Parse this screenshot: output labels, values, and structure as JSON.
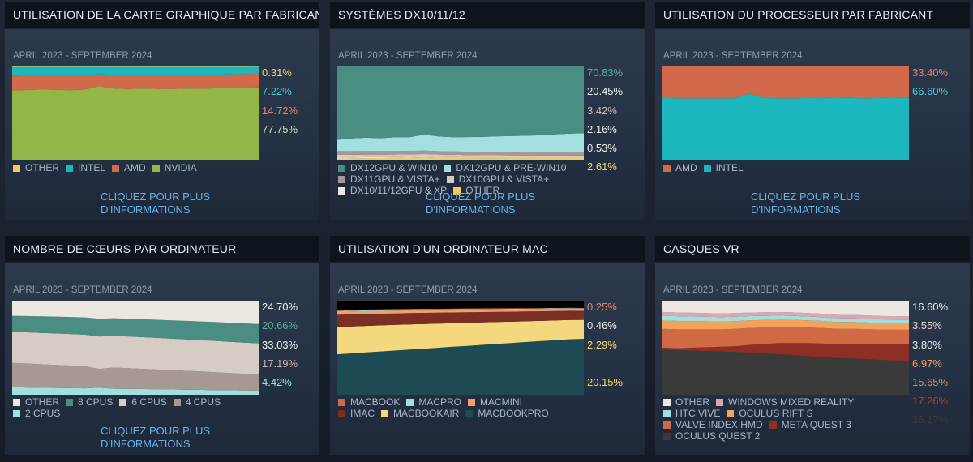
{
  "panels": [
    {
      "title": "UTILISATION DE LA CARTE GRAPHIQUE PAR FABRICANT",
      "date_range": "APRIL 2023 - SEPTEMBER 2024",
      "link_lines": [
        "CLIQUEZ POUR PLUS",
        "D'INFORMATIONS"
      ],
      "chart_data": {
        "type": "area",
        "stacking": "percent",
        "series": [
          {
            "name": "NVIDIA",
            "color": "#93b647",
            "label": "77.75%",
            "label_color": "#d4e6a8",
            "values": [
              74.5,
              75.0,
              75.5,
              75.2,
              74.8,
              75.4,
              79.2,
              76.5,
              76.0,
              76.5,
              76.2,
              76.0,
              76.5,
              76.3,
              76.8,
              77.0,
              77.3,
              77.75
            ]
          },
          {
            "name": "AMD",
            "color": "#d1694a",
            "label": "14.72%",
            "label_color": "#e58567",
            "values": [
              15.8,
              15.6,
              15.2,
              15.4,
              15.8,
              15.5,
              12.5,
              14.6,
              15.0,
              14.6,
              14.8,
              15.0,
              14.6,
              14.8,
              14.5,
              14.6,
              14.7,
              14.72
            ]
          },
          {
            "name": "INTEL",
            "color": "#1cb7be",
            "label": "7.22%",
            "label_color": "#3fd0d4",
            "values": [
              9.2,
              9.0,
              8.9,
              9.0,
              9.0,
              8.7,
              7.9,
              8.5,
              8.6,
              8.5,
              8.6,
              8.6,
              8.5,
              8.5,
              8.3,
              8.0,
              7.6,
              7.22
            ]
          },
          {
            "name": "OTHER",
            "color": "#f2cb5c",
            "label": "0.31%",
            "label_color": "#f6d86c",
            "values": [
              0.5,
              0.4,
              0.4,
              0.4,
              0.4,
              0.4,
              0.4,
              0.4,
              0.4,
              0.4,
              0.4,
              0.4,
              0.4,
              0.4,
              0.4,
              0.4,
              0.4,
              0.31
            ]
          }
        ]
      },
      "legend": [
        [
          "OTHER",
          "INTEL",
          "AMD",
          "NVIDIA"
        ]
      ]
    },
    {
      "title": "SYSTÈMES DX10/11/12",
      "date_range": "APRIL 2023 - SEPTEMBER 2024",
      "link_lines": [
        "CLIQUEZ POUR PLUS",
        "D'INFORMATIONS"
      ],
      "chart_data": {
        "type": "area",
        "stacking": "percent",
        "series": [
          {
            "name": "OTHER",
            "color": "#f2cb5c",
            "label": "2.61%",
            "label_color": "#f6d86c",
            "values": [
              2.0,
              2.2,
              2.5,
              2.6,
              2.8,
              3.0,
              3.5,
              3.0,
              2.8,
              2.6,
              2.5,
              2.5,
              2.6,
              2.5,
              2.6,
              2.6,
              2.6,
              2.61
            ]
          },
          {
            "name": "DX10/11/12GPU & XP",
            "color": "#ece8e1",
            "label": "0.53%",
            "label_color": "#f0f0f0",
            "values": [
              1.0,
              1.0,
              1.0,
              0.9,
              0.9,
              0.9,
              0.8,
              0.8,
              0.8,
              0.7,
              0.7,
              0.7,
              0.6,
              0.6,
              0.6,
              0.6,
              0.55,
              0.53
            ]
          },
          {
            "name": "DX10GPU & VISTA+",
            "color": "#d7ccc4",
            "label": "2.16%",
            "label_color": "#f0f0f0",
            "values": [
              3.0,
              2.9,
              2.8,
              2.8,
              2.7,
              2.7,
              2.6,
              2.6,
              2.5,
              2.5,
              2.4,
              2.4,
              2.3,
              2.3,
              2.2,
              2.2,
              2.2,
              2.16
            ]
          },
          {
            "name": "DX11GPU & VISTA+",
            "color": "#a89893",
            "label": "3.42%",
            "label_color": "#d7b8b0",
            "values": [
              4.0,
              3.9,
              3.9,
              3.8,
              3.8,
              3.7,
              3.7,
              3.6,
              3.6,
              3.6,
              3.5,
              3.5,
              3.5,
              3.5,
              3.4,
              3.4,
              3.4,
              3.42
            ]
          },
          {
            "name": "DX12GPU & PRE-WIN10",
            "color": "#a2e0e0",
            "label": "20.45%",
            "label_color": "#f0f0f0",
            "values": [
              12.0,
              13.5,
              14.0,
              13.5,
              14.5,
              14.5,
              17.0,
              15.5,
              15.0,
              15.5,
              16.0,
              16.5,
              17.0,
              17.5,
              18.0,
              19.0,
              19.8,
              20.45
            ]
          },
          {
            "name": "DX12GPU & WIN10",
            "color": "#4a8d83",
            "label": "70.83%",
            "label_color": "#5aaa9c",
            "values": [
              78.0,
              76.5,
              75.8,
              76.4,
              75.3,
              75.2,
              72.4,
              74.5,
              75.3,
              75.1,
              74.9,
              74.4,
              74.0,
              73.6,
              73.2,
              72.2,
              71.45,
              70.83
            ]
          }
        ]
      },
      "legend": [
        [
          "DX12GPU & WIN10",
          "DX12GPU & PRE-WIN10"
        ],
        [
          "DX11GPU & VISTA+",
          "DX10GPU & VISTA+"
        ],
        [
          "DX10/11/12GPU & XP",
          "OTHER"
        ]
      ]
    },
    {
      "title": "UTILISATION DU PROCESSEUR PAR FABRICANT",
      "date_range": "APRIL 2023 - SEPTEMBER 2024",
      "link_lines": [
        "CLIQUEZ POUR PLUS",
        "D'INFORMATIONS"
      ],
      "chart_data": {
        "type": "area",
        "stacking": "percent",
        "series": [
          {
            "name": "INTEL",
            "color": "#1cb7be",
            "label": "66.60%",
            "label_color": "#3fd0d4",
            "values": [
              66.5,
              66.2,
              66.0,
              66.2,
              66.0,
              66.3,
              71.0,
              66.5,
              66.2,
              66.0,
              66.5,
              66.3,
              66.8,
              66.5,
              66.2,
              66.5,
              66.4,
              66.6
            ]
          },
          {
            "name": "AMD",
            "color": "#d1694a",
            "label": "33.40%",
            "label_color": "#e58567",
            "values": [
              33.5,
              33.8,
              34.0,
              33.8,
              34.0,
              33.7,
              29.0,
              33.5,
              33.8,
              34.0,
              33.5,
              33.7,
              33.2,
              33.5,
              33.8,
              33.5,
              33.6,
              33.4
            ]
          }
        ]
      },
      "legend": [
        [
          "AMD",
          "INTEL"
        ]
      ]
    },
    {
      "title": "NOMBRE DE CŒURS PAR ORDINATEUR",
      "date_range": "APRIL 2023 - SEPTEMBER 2024",
      "link_lines": [
        "CLIQUEZ POUR PLUS",
        "D'INFORMATIONS"
      ],
      "chart_data": {
        "type": "area",
        "stacking": "percent",
        "series": [
          {
            "name": "2 CPUS",
            "color": "#a2e0e0",
            "label": "4.42%",
            "label_color": "#9fe8e8",
            "values": [
              8.0,
              7.7,
              7.4,
              7.2,
              7.0,
              6.8,
              7.5,
              6.4,
              6.2,
              6.0,
              5.8,
              5.6,
              5.4,
              5.2,
              5.0,
              4.8,
              4.6,
              4.42
            ]
          },
          {
            "name": "4 CPUS",
            "color": "#a89893",
            "label": "17.19%",
            "label_color": "#c9b1aa",
            "values": [
              26.0,
              25.5,
              25.0,
              24.5,
              24.0,
              23.5,
              20.0,
              22.5,
              22.0,
              21.5,
              21.0,
              20.5,
              20.0,
              19.5,
              19.0,
              18.3,
              17.7,
              17.19
            ]
          },
          {
            "name": "6 CPUS",
            "color": "#d7ccc4",
            "label": "33.03%",
            "label_color": "#f0f0f0",
            "values": [
              33.0,
              33.2,
              33.4,
              33.5,
              33.6,
              33.6,
              34.5,
              33.8,
              33.8,
              33.7,
              33.6,
              33.5,
              33.4,
              33.3,
              33.2,
              33.1,
              33.05,
              33.03
            ]
          },
          {
            "name": "8 CPUS",
            "color": "#4a8d83",
            "label": "20.66%",
            "label_color": "#5aaa9c",
            "values": [
              17.0,
              17.3,
              17.6,
              17.9,
              18.1,
              18.3,
              18.8,
              18.7,
              18.9,
              19.1,
              19.3,
              19.5,
              19.7,
              19.9,
              20.1,
              20.3,
              20.5,
              20.66
            ]
          },
          {
            "name": "OTHER",
            "color": "#ece8e1",
            "label": "24.70%",
            "label_color": "#f0f0f0",
            "values": [
              16.0,
              16.3,
              16.6,
              16.9,
              17.3,
              17.8,
              19.2,
              18.6,
              19.1,
              19.7,
              20.3,
              20.9,
              21.5,
              22.1,
              22.7,
              23.5,
              24.15,
              24.7
            ]
          }
        ]
      },
      "legend": [
        [
          "OTHER",
          "8 CPUS",
          "6 CPUS",
          "4 CPUS"
        ],
        [
          "2 CPUS"
        ]
      ]
    },
    {
      "title": "UTILISATION D'UN ORDINATEUR MAC",
      "date_range": "APRIL 2023 - SEPTEMBER 2024",
      "link_lines": [],
      "chart_data": {
        "type": "area",
        "stacking": "percent",
        "series": [
          {
            "name": "MACBOOKPRO",
            "color": "#1c4a55",
            "label": "",
            "label_color": "#1c4a55",
            "values": [
              43.0,
              44.0,
              45.0,
              46.0,
              47.0,
              48.0,
              49.0,
              50.0,
              51.0,
              52.0,
              53.0,
              54.0,
              55.0,
              56.0,
              57.0,
              58.0,
              59.0,
              59.5
            ]
          },
          {
            "name": "MACBOOKAIR",
            "color": "#f3d87d",
            "label": "20.15%",
            "label_color": "#f6d86c",
            "values": [
              29.0,
              28.6,
              28.2,
              27.8,
              27.3,
              26.8,
              26.3,
              25.7,
              25.1,
              24.5,
              23.9,
              23.3,
              22.7,
              22.1,
              21.5,
              21.0,
              20.5,
              20.15
            ]
          },
          {
            "name": "IMAC",
            "color": "#7a2e24",
            "label": "",
            "label_color": "#7a2e24",
            "values": [
              13.0,
              12.8,
              12.6,
              12.4,
              12.2,
              12.0,
              11.8,
              11.6,
              11.4,
              11.2,
              11.0,
              10.8,
              10.6,
              10.4,
              10.2,
              10.0,
              9.8,
              9.6
            ]
          },
          {
            "name": "MACMINI",
            "color": "#f0a068",
            "label": "2.29%",
            "label_color": "#f6d86c",
            "values": [
              3.2,
              3.1,
              3.1,
              3.0,
              3.0,
              2.9,
              2.9,
              2.8,
              2.8,
              2.7,
              2.7,
              2.6,
              2.6,
              2.5,
              2.5,
              2.4,
              2.35,
              2.29
            ]
          },
          {
            "name": "MACPRO",
            "color": "#a2e0e0",
            "label": "0.46%",
            "label_color": "#f0f0f0",
            "values": [
              0.8,
              0.8,
              0.8,
              0.7,
              0.7,
              0.7,
              0.7,
              0.6,
              0.6,
              0.6,
              0.6,
              0.6,
              0.5,
              0.5,
              0.5,
              0.5,
              0.5,
              0.46
            ]
          },
          {
            "name": "MACBOOK",
            "color": "#d1694a",
            "label": "0.25%",
            "label_color": "#e58567",
            "values": [
              1.0,
              0.9,
              0.9,
              0.9,
              0.8,
              0.8,
              0.8,
              0.7,
              0.7,
              0.7,
              0.6,
              0.6,
              0.5,
              0.5,
              0.4,
              0.35,
              0.3,
              0.25
            ]
          }
        ]
      },
      "legend": [
        [
          "MACBOOK",
          "MACPRO",
          "MACMINI"
        ],
        [
          "IMAC",
          "MACBOOKAIR",
          "MACBOOKPRO"
        ]
      ]
    },
    {
      "title": "CASQUES VR",
      "date_range": "APRIL 2023 - SEPTEMBER 2024",
      "link_lines": [],
      "chart_data": {
        "type": "area",
        "stacking": "percent",
        "series": [
          {
            "name": "OCULUS QUEST 2",
            "color": "#3a3a3a",
            "label": "36.17%",
            "label_color": "#3a3a3a",
            "values": [
              48.0,
              47.5,
              47.0,
              46.5,
              46.0,
              45.5,
              45.0,
              44.0,
              43.0,
              42.0,
              41.0,
              40.0,
              39.0,
              38.5,
              38.0,
              37.0,
              36.5,
              36.17
            ]
          },
          {
            "name": "META QUEST 3",
            "color": "#8e2e25",
            "label": "17.26%",
            "label_color": "#c0392b",
            "values": [
              2.0,
              2.0,
              3.0,
              4.0,
              5.0,
              6.0,
              8.0,
              10.0,
              12.0,
              13.0,
              14.0,
              14.5,
              15.0,
              15.5,
              16.0,
              16.5,
              17.0,
              17.26
            ]
          },
          {
            "name": "VALVE INDEX HMD",
            "color": "#cf6a45",
            "label": "15.65%",
            "label_color": "#e58567",
            "values": [
              20.0,
              20.0,
              19.5,
              19.0,
              18.5,
              18.5,
              18.0,
              17.5,
              17.0,
              17.0,
              16.5,
              16.5,
              16.0,
              16.0,
              15.8,
              15.7,
              15.7,
              15.65
            ]
          },
          {
            "name": "OCULUS RIFT S",
            "color": "#f2a25a",
            "label": "6.97%",
            "label_color": "#f0a068",
            "values": [
              9.0,
              9.0,
              8.8,
              8.6,
              8.4,
              8.3,
              8.1,
              8.0,
              7.8,
              7.7,
              7.6,
              7.5,
              7.4,
              7.3,
              7.2,
              7.1,
              7.0,
              6.97
            ]
          },
          {
            "name": "HTC VIVE",
            "color": "#a2e0e0",
            "label": "3.80%",
            "label_color": "#f0f0f0",
            "values": [
              5.0,
              5.0,
              4.9,
              4.8,
              4.7,
              4.6,
              4.5,
              4.4,
              4.3,
              4.2,
              4.1,
              4.0,
              4.0,
              3.9,
              3.9,
              3.85,
              3.82,
              3.8
            ]
          },
          {
            "name": "WINDOWS MIXED REALITY",
            "color": "#d9a8b4",
            "label": "3.55%",
            "label_color": "#f0d0d8",
            "values": [
              4.0,
              4.0,
              4.0,
              3.9,
              3.9,
              3.9,
              3.8,
              3.8,
              3.8,
              3.7,
              3.7,
              3.7,
              3.6,
              3.6,
              3.6,
              3.6,
              3.56,
              3.55
            ]
          },
          {
            "name": "OTHER",
            "color": "#ece8e1",
            "label": "16.60%",
            "label_color": "#f0f0f0",
            "values": [
              12.0,
              12.5,
              12.8,
              13.2,
              13.5,
              13.2,
              12.6,
              12.3,
              12.1,
              12.4,
              13.1,
              13.8,
              15.0,
              15.2,
              15.5,
              16.25,
              16.42,
              16.6
            ]
          }
        ]
      },
      "legend": [
        [
          "OTHER",
          "WINDOWS MIXED REALITY"
        ],
        [
          "HTC VIVE",
          "OCULUS RIFT S"
        ],
        [
          "VALVE INDEX HMD",
          "META QUEST 3"
        ],
        [
          "OCULUS QUEST 2"
        ]
      ]
    }
  ]
}
